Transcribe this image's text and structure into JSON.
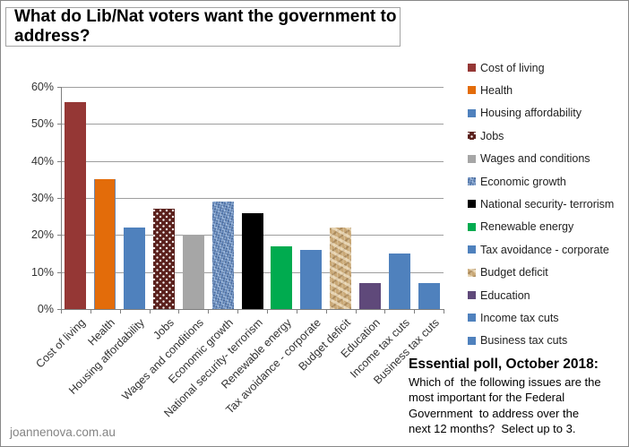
{
  "title": "What do Lib/Nat voters want the government to address?",
  "watermark": "joannenova.com.au",
  "source_note": {
    "heading": "Essential poll, October 2018:",
    "body": "Which of  the following issues are the\nmost important for the Federal\nGovernment  to address over the\nnext 12 months?  Select up to 3."
  },
  "chart_data": {
    "type": "bar",
    "title": "What do Lib/Nat voters want the government to address?",
    "categories": [
      "Cost of living",
      "Health",
      "Housing affordability",
      "Jobs",
      "Wages and conditions",
      "Economic growth",
      "National security- terrorism",
      "Renewable energy",
      "Tax avoidance - corporate",
      "Budget deficit",
      "Education",
      "Income tax cuts",
      "Business tax cuts"
    ],
    "values": [
      56,
      35,
      22,
      27,
      20,
      29,
      26,
      17,
      16,
      22,
      7,
      15,
      7
    ],
    "bar_styles": [
      {
        "fill": "#953735",
        "pattern": "solid"
      },
      {
        "fill": "#E36C0A",
        "pattern": "solid",
        "border": "#6C87AE"
      },
      {
        "fill": "#4F81BD",
        "pattern": "solid"
      },
      {
        "fill": "#5A201C",
        "pattern": "dots"
      },
      {
        "fill": "#A6A6A6",
        "pattern": "solid"
      },
      {
        "fill": "#6287BB",
        "pattern": "denim"
      },
      {
        "fill": "#000000",
        "pattern": "solid"
      },
      {
        "fill": "#00AB4F",
        "pattern": "solid"
      },
      {
        "fill": "#4F81BD",
        "pattern": "solid"
      },
      {
        "fill": "#C9A876",
        "pattern": "paper"
      },
      {
        "fill": "#5F497A",
        "pattern": "solid"
      },
      {
        "fill": "#4F81BD",
        "pattern": "solid"
      },
      {
        "fill": "#4F81BD",
        "pattern": "solid"
      }
    ],
    "y_ticks": [
      "0%",
      "10%",
      "20%",
      "30%",
      "40%",
      "50%",
      "60%"
    ],
    "ylim": [
      0,
      60
    ],
    "xlabel": "",
    "ylabel": "",
    "grid": true,
    "gridline_color": "#9E9E9E",
    "axis_color": "#7F7F7F",
    "legend_position": "right"
  }
}
